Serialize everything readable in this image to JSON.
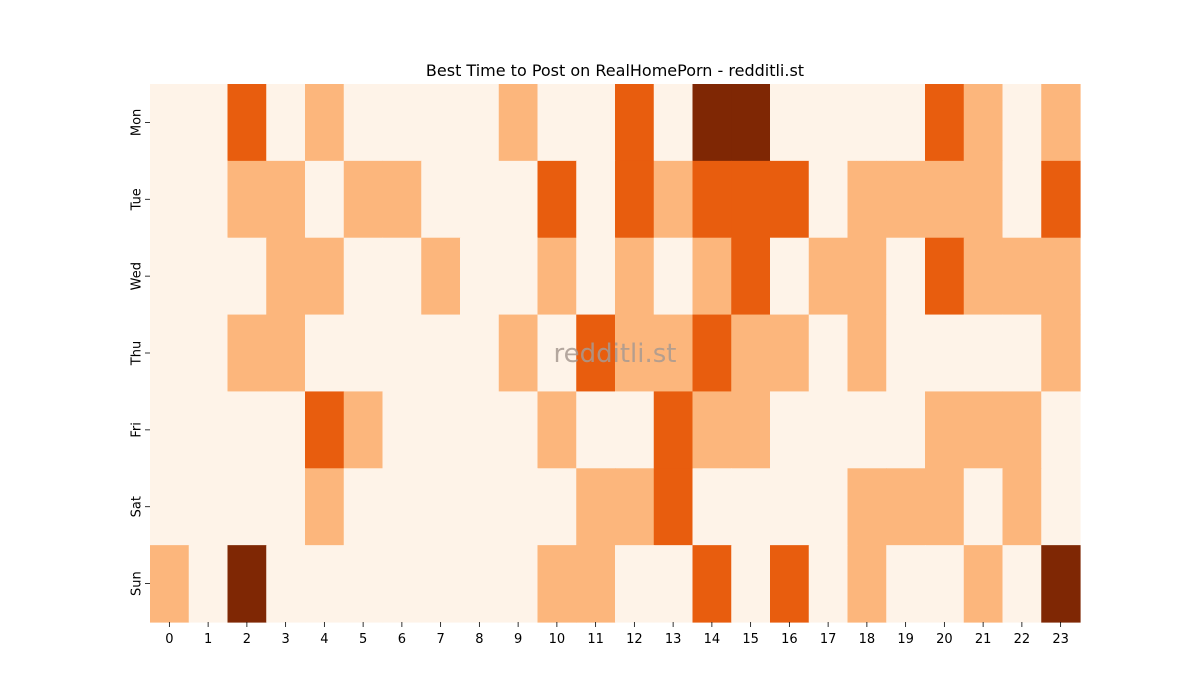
{
  "chart_data": {
    "type": "heatmap",
    "title": "Best Time to Post on RealHomePorn - redditli.st",
    "watermark": "redditli.st",
    "x_categories": [
      "0",
      "1",
      "2",
      "3",
      "4",
      "5",
      "6",
      "7",
      "8",
      "9",
      "10",
      "11",
      "12",
      "13",
      "14",
      "15",
      "16",
      "17",
      "18",
      "19",
      "20",
      "21",
      "22",
      "23"
    ],
    "y_categories": [
      "Mon",
      "Tue",
      "Wed",
      "Thu",
      "Fri",
      "Sat",
      "Sun"
    ],
    "values": [
      [
        0,
        0,
        2,
        0,
        1,
        0,
        0,
        0,
        0,
        1,
        0,
        0,
        2,
        0,
        3,
        3,
        0,
        0,
        0,
        0,
        2,
        1,
        0,
        1
      ],
      [
        0,
        0,
        1,
        1,
        0,
        1,
        1,
        0,
        0,
        0,
        2,
        0,
        2,
        1,
        2,
        2,
        2,
        0,
        1,
        1,
        1,
        1,
        0,
        2
      ],
      [
        0,
        0,
        0,
        1,
        1,
        0,
        0,
        1,
        0,
        0,
        1,
        0,
        1,
        0,
        1,
        2,
        0,
        1,
        1,
        0,
        2,
        1,
        1,
        1
      ],
      [
        0,
        0,
        1,
        1,
        0,
        0,
        0,
        0,
        0,
        1,
        0,
        2,
        1,
        1,
        2,
        1,
        1,
        0,
        1,
        0,
        0,
        0,
        0,
        1
      ],
      [
        0,
        0,
        0,
        0,
        2,
        1,
        0,
        0,
        0,
        0,
        1,
        0,
        0,
        2,
        1,
        1,
        0,
        0,
        0,
        0,
        1,
        1,
        1,
        0
      ],
      [
        0,
        0,
        0,
        0,
        1,
        0,
        0,
        0,
        0,
        0,
        0,
        1,
        1,
        2,
        0,
        0,
        0,
        0,
        1,
        1,
        1,
        0,
        1,
        0
      ],
      [
        1,
        0,
        3,
        0,
        0,
        0,
        0,
        0,
        0,
        0,
        1,
        1,
        0,
        0,
        2,
        0,
        2,
        0,
        1,
        0,
        0,
        1,
        0,
        3
      ]
    ],
    "colormap": [
      "#fef3e8",
      "#fcb67c",
      "#e85d0e",
      "#7f2704"
    ],
    "xlabel": "",
    "ylabel": ""
  }
}
